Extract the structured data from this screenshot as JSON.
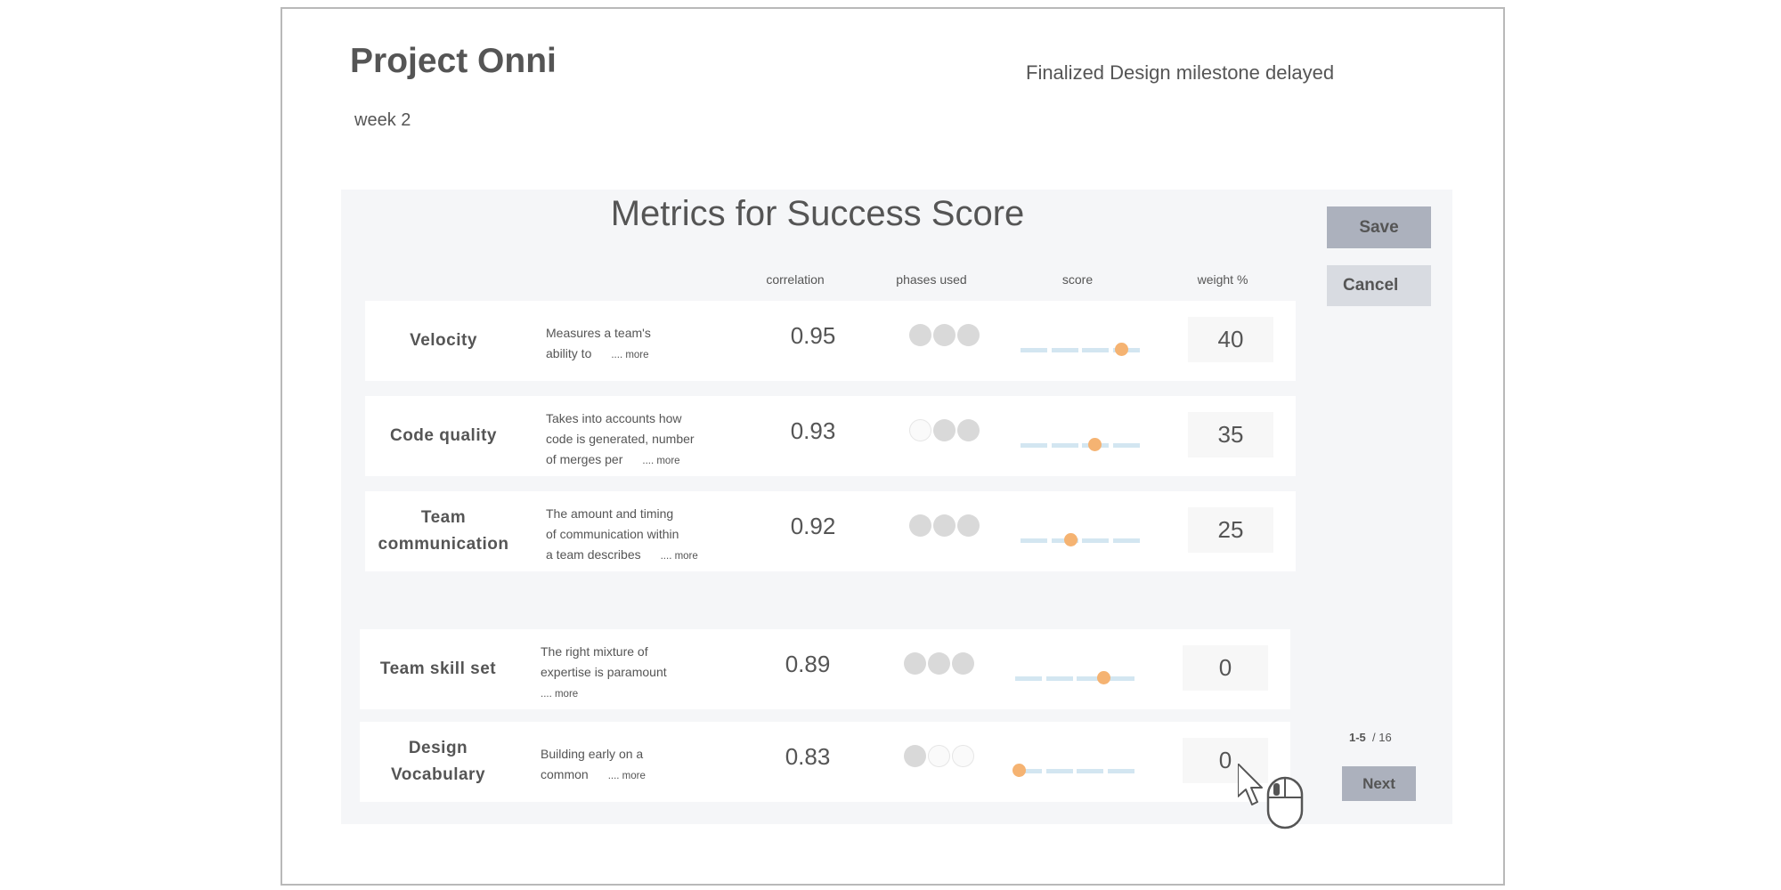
{
  "project": {
    "title": "Project Onni",
    "week": "week 2",
    "status": "Finalized Design milestone delayed"
  },
  "panel": {
    "title": "Metrics for Success Score"
  },
  "columns": {
    "correlation": "correlation",
    "phases": "phases used",
    "score": "score",
    "weight": "weight %"
  },
  "buttons": {
    "save": "Save",
    "cancel": "Cancel",
    "next": "Next"
  },
  "pager": {
    "range": "1-5",
    "total": "/ 16"
  },
  "more_label": ".... more",
  "metrics": [
    {
      "name": "Velocity",
      "desc": [
        "Measures a team's",
        "ability to"
      ],
      "correlation": "0.95",
      "phases": [
        true,
        true,
        true
      ],
      "score": 0.84,
      "weight": "40"
    },
    {
      "name": "Code quality",
      "desc": [
        "Takes into accounts how",
        "code is generated, number",
        "of merges per"
      ],
      "correlation": "0.93",
      "phases": [
        false,
        true,
        true
      ],
      "score": 0.62,
      "weight": "35"
    },
    {
      "name": "Team communication",
      "name_lines": [
        "Team",
        "communication"
      ],
      "desc": [
        "The amount and timing",
        "of communication within",
        "a team describes"
      ],
      "correlation": "0.92",
      "phases": [
        true,
        true,
        true
      ],
      "score": 0.42,
      "weight": "25"
    },
    {
      "name": "Team skill set",
      "desc": [
        "The right mixture of",
        "expertise is paramount",
        ""
      ],
      "correlation": "0.89",
      "phases": [
        true,
        true,
        true
      ],
      "score": 0.74,
      "weight": "0"
    },
    {
      "name": "Design Vocabulary",
      "name_lines": [
        "Design",
        "Vocabulary"
      ],
      "desc": [
        "Building early on a",
        "common"
      ],
      "correlation": "0.83",
      "phases": [
        true,
        false,
        false
      ],
      "score": 0.03,
      "weight": "0"
    }
  ],
  "colors": {
    "panel_bg": "#f5f6f8",
    "slider_track": "#d3e6f1",
    "slider_knob": "#f5b372",
    "phase_on": "#d9d9d9",
    "save_btn": "#acb1bd",
    "cancel_btn": "#d8dbe1"
  },
  "icons": {
    "cursor": "mouse-pointer-icon",
    "mouse": "mouse-icon"
  }
}
